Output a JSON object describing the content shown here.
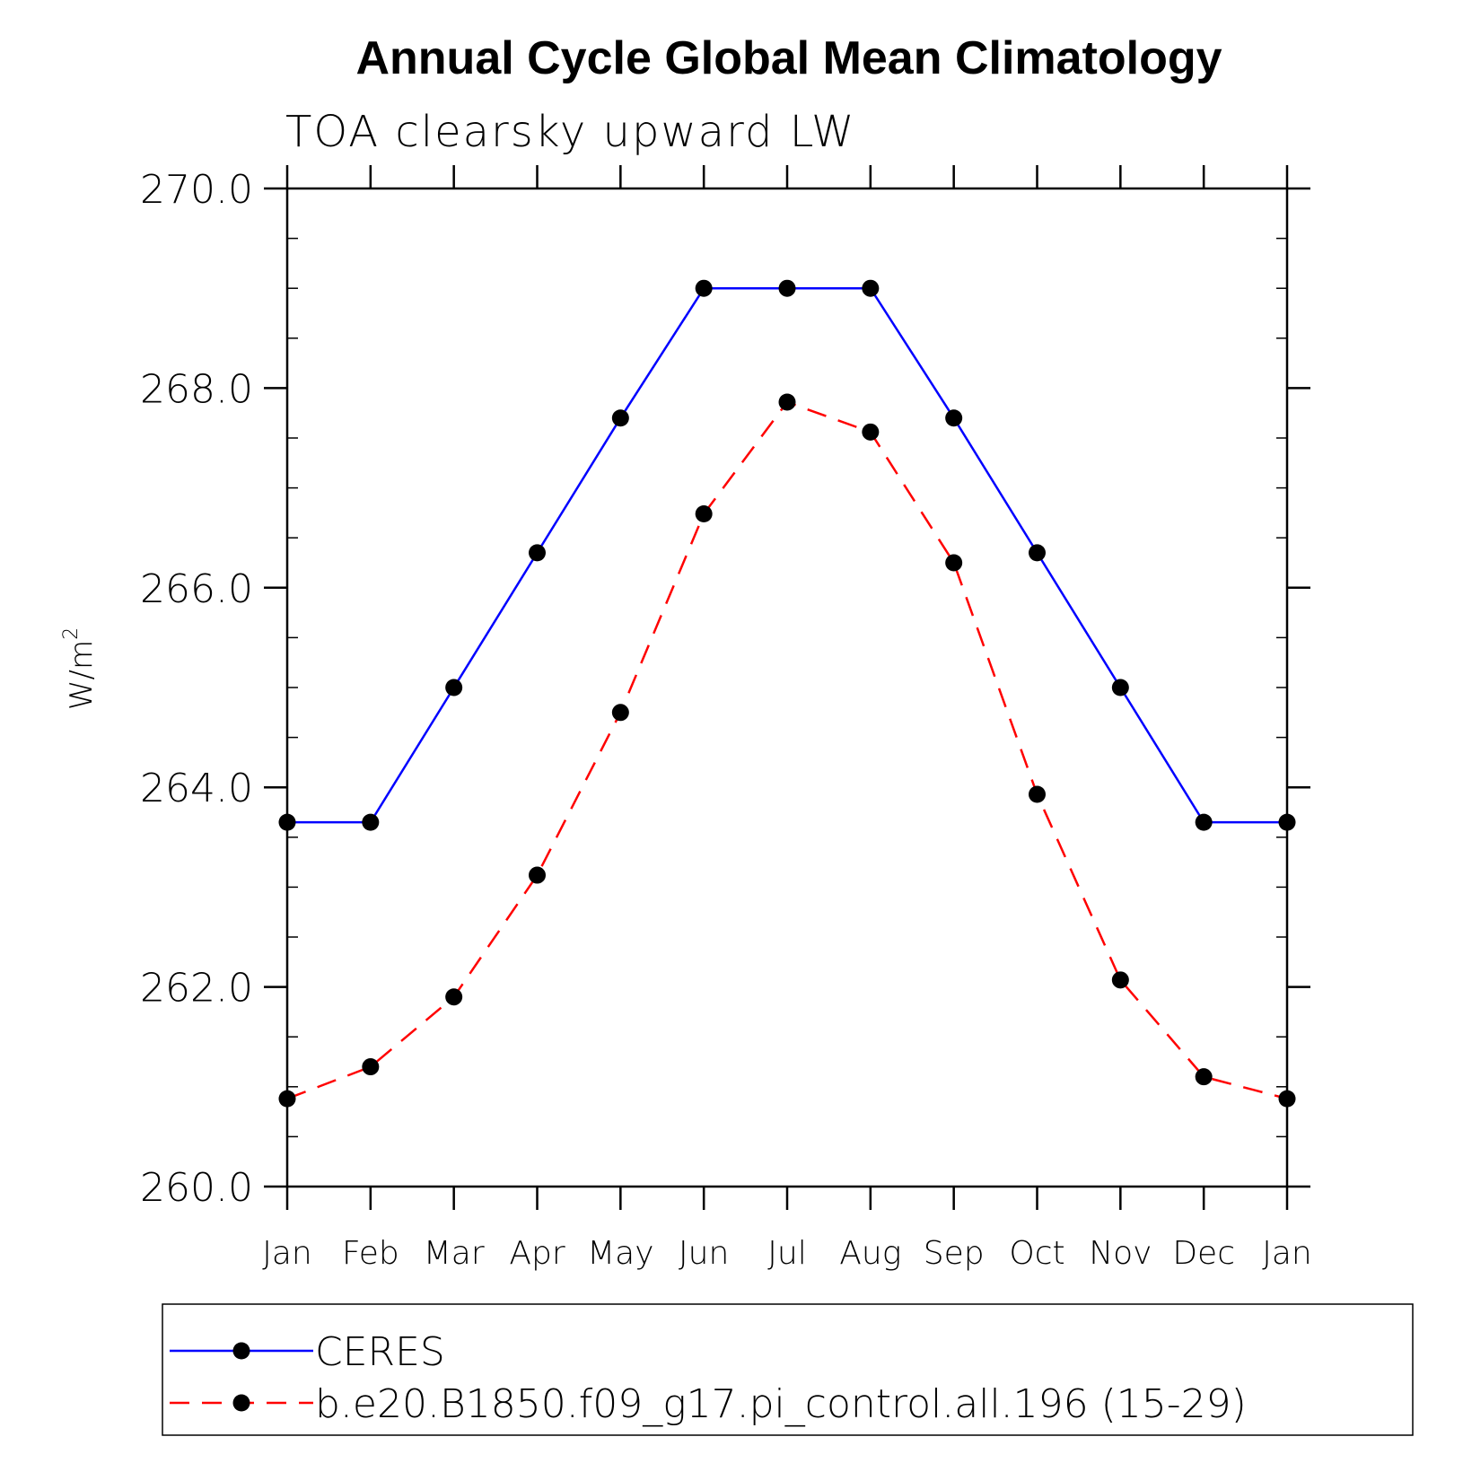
{
  "chart_data": {
    "type": "line",
    "title": "Annual Cycle Global Mean Climatology",
    "subtitle": "TOA clearsky upward LW",
    "ylabel": "W/m",
    "ylabel_superscript": "2",
    "ylim": [
      260.0,
      270.0
    ],
    "yticks": [
      "260.0",
      "262.0",
      "264.0",
      "266.0",
      "268.0",
      "270.0"
    ],
    "categories": [
      "Jan",
      "Feb",
      "Mar",
      "Apr",
      "May",
      "Jun",
      "Jul",
      "Aug",
      "Sep",
      "Oct",
      "Nov",
      "Dec",
      "Jan"
    ],
    "series": [
      {
        "name": "CERES",
        "color": "#0000ff",
        "line_style": "solid",
        "marker": "filled-circle",
        "values": [
          263.65,
          263.65,
          265.0,
          266.35,
          267.7,
          269.0,
          269.0,
          269.0,
          267.7,
          266.35,
          265.0,
          263.65,
          263.65
        ]
      },
      {
        "name": "b.e20.B1850.f09_g17.pi_control.all.196 (15-29)",
        "color": "#ff0000",
        "line_style": "dashed",
        "marker": "filled-circle",
        "values": [
          260.88,
          261.2,
          261.9,
          263.12,
          264.75,
          266.74,
          267.86,
          267.56,
          266.25,
          263.93,
          262.07,
          261.1,
          260.88
        ]
      }
    ],
    "legend_position": "bottom"
  }
}
